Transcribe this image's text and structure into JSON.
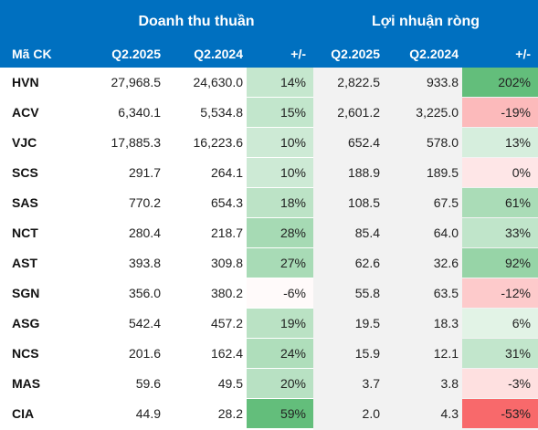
{
  "header": {
    "group_revenue": "Doanh thu thuần",
    "group_profit": "Lợi nhuận ròng",
    "col_ticker": "Mã CK",
    "col_rev_q2025": "Q2.2025",
    "col_rev_q2024": "Q2.2024",
    "col_rev_change": "+/-",
    "col_prof_q2025": "Q2.2025",
    "col_prof_q2024": "Q2.2024",
    "col_prof_change": "+/-"
  },
  "colors": {
    "header_bg": "#0070C0",
    "band_bg": "#F2F2F2",
    "positive": "#63BE7B",
    "negative": "#F8696B"
  },
  "rows": [
    {
      "ticker": "HVN",
      "rev_q2025": "27,968.5",
      "rev_q2024": "24,630.0",
      "rev_change": "14%",
      "rev_pct": 14,
      "prof_q2025": "2,822.5",
      "prof_q2024": "933.8",
      "prof_change": "202%",
      "prof_pct": 202
    },
    {
      "ticker": "ACV",
      "rev_q2025": "6,340.1",
      "rev_q2024": "5,534.8",
      "rev_change": "15%",
      "rev_pct": 15,
      "prof_q2025": "2,601.2",
      "prof_q2024": "3,225.0",
      "prof_change": "-19%",
      "prof_pct": -19
    },
    {
      "ticker": "VJC",
      "rev_q2025": "17,885.3",
      "rev_q2024": "16,223.6",
      "rev_change": "10%",
      "rev_pct": 10,
      "prof_q2025": "652.4",
      "prof_q2024": "578.0",
      "prof_change": "13%",
      "prof_pct": 13
    },
    {
      "ticker": "SCS",
      "rev_q2025": "291.7",
      "rev_q2024": "264.1",
      "rev_change": "10%",
      "rev_pct": 10,
      "prof_q2025": "188.9",
      "prof_q2024": "189.5",
      "prof_change": "0%",
      "prof_pct": -0.3
    },
    {
      "ticker": "SAS",
      "rev_q2025": "770.2",
      "rev_q2024": "654.3",
      "rev_change": "18%",
      "rev_pct": 18,
      "prof_q2025": "108.5",
      "prof_q2024": "67.5",
      "prof_change": "61%",
      "prof_pct": 61
    },
    {
      "ticker": "NCT",
      "rev_q2025": "280.4",
      "rev_q2024": "218.7",
      "rev_change": "28%",
      "rev_pct": 28,
      "prof_q2025": "85.4",
      "prof_q2024": "64.0",
      "prof_change": "33%",
      "prof_pct": 33
    },
    {
      "ticker": "AST",
      "rev_q2025": "393.8",
      "rev_q2024": "309.8",
      "rev_change": "27%",
      "rev_pct": 27,
      "prof_q2025": "62.6",
      "prof_q2024": "32.6",
      "prof_change": "92%",
      "prof_pct": 92
    },
    {
      "ticker": "SGN",
      "rev_q2025": "356.0",
      "rev_q2024": "380.2",
      "rev_change": "-6%",
      "rev_pct": -6,
      "prof_q2025": "55.8",
      "prof_q2024": "63.5",
      "prof_change": "-12%",
      "prof_pct": -12
    },
    {
      "ticker": "ASG",
      "rev_q2025": "542.4",
      "rev_q2024": "457.2",
      "rev_change": "19%",
      "rev_pct": 19,
      "prof_q2025": "19.5",
      "prof_q2024": "18.3",
      "prof_change": "6%",
      "prof_pct": 6
    },
    {
      "ticker": "NCS",
      "rev_q2025": "201.6",
      "rev_q2024": "162.4",
      "rev_change": "24%",
      "rev_pct": 24,
      "prof_q2025": "15.9",
      "prof_q2024": "12.1",
      "prof_change": "31%",
      "prof_pct": 31
    },
    {
      "ticker": "MAS",
      "rev_q2025": "59.6",
      "rev_q2024": "49.5",
      "rev_change": "20%",
      "rev_pct": 20,
      "prof_q2025": "3.7",
      "prof_q2024": "3.8",
      "prof_change": "-3%",
      "prof_pct": -3
    },
    {
      "ticker": "CIA",
      "rev_q2025": "44.9",
      "rev_q2024": "28.2",
      "rev_change": "59%",
      "rev_pct": 59,
      "prof_q2025": "2.0",
      "prof_q2024": "4.3",
      "prof_change": "-53%",
      "prof_pct": -53
    }
  ]
}
